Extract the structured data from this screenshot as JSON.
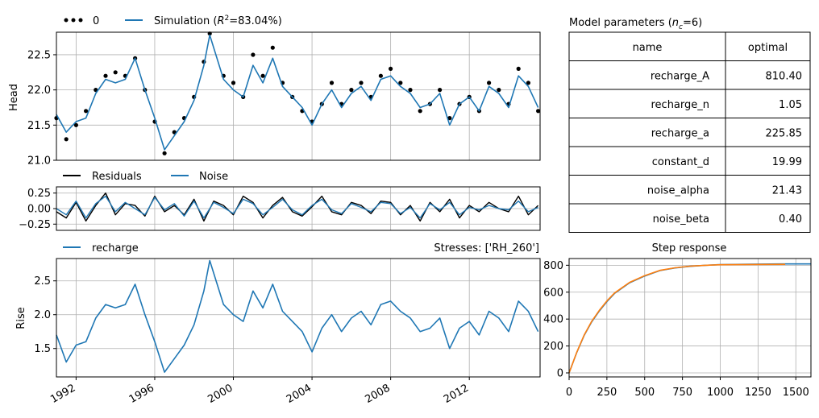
{
  "chart_data": [
    {
      "id": "head",
      "type": "line",
      "ylabel": "Head",
      "ylim": [
        21.0,
        22.82
      ],
      "yticks": [
        "21.0",
        "21.5",
        "22.0",
        "22.5"
      ],
      "x_range": [
        "1991-01",
        "2015-06"
      ],
      "legend": {
        "placement": "top-left, above axes",
        "items": [
          {
            "label": "0",
            "style": "dots",
            "color": "#000000"
          },
          {
            "label": "Simulation (R²=83.04%)",
            "style": "line",
            "color": "#1f77b4"
          }
        ]
      },
      "series": [
        {
          "name": "0",
          "kind": "observed points",
          "x": [
            1991.0,
            1991.5,
            1992.0,
            1992.5,
            1993.0,
            1993.5,
            1994.0,
            1994.5,
            1995.0,
            1995.5,
            1996.0,
            1996.5,
            1997.0,
            1997.5,
            1998.0,
            1998.5,
            1998.8,
            1999.5,
            2000.0,
            2000.5,
            2001.0,
            2001.5,
            2002.0,
            2002.5,
            2003.0,
            2003.5,
            2004.0,
            2004.5,
            2005.0,
            2005.5,
            2006.0,
            2006.5,
            2007.0,
            2007.5,
            2008.0,
            2008.5,
            2009.0,
            2009.5,
            2010.0,
            2010.5,
            2011.0,
            2011.5,
            2012.0,
            2012.5,
            2013.0,
            2013.5,
            2014.0,
            2014.5,
            2015.0,
            2015.5
          ],
          "y": [
            21.6,
            21.3,
            21.5,
            21.7,
            22.0,
            22.2,
            22.25,
            22.2,
            22.45,
            22.0,
            21.55,
            21.1,
            21.4,
            21.6,
            21.9,
            22.4,
            22.8,
            22.2,
            22.1,
            21.9,
            22.5,
            22.2,
            22.6,
            22.1,
            21.9,
            21.7,
            21.55,
            21.8,
            22.1,
            21.8,
            22.0,
            22.1,
            21.9,
            22.2,
            22.3,
            22.1,
            22.0,
            21.7,
            21.8,
            22.0,
            21.6,
            21.8,
            21.9,
            21.7,
            22.1,
            22.0,
            21.8,
            22.3,
            22.1,
            21.7
          ]
        },
        {
          "name": "Simulation (R²=83.04%)",
          "kind": "line",
          "x": [
            1991.0,
            1991.5,
            1992.0,
            1992.5,
            1993.0,
            1993.5,
            1994.0,
            1994.5,
            1995.0,
            1995.5,
            1996.0,
            1996.5,
            1997.0,
            1997.5,
            1998.0,
            1998.5,
            1998.8,
            1999.5,
            2000.0,
            2000.5,
            2001.0,
            2001.5,
            2002.0,
            2002.5,
            2003.0,
            2003.5,
            2004.0,
            2004.5,
            2005.0,
            2005.5,
            2006.0,
            2006.5,
            2007.0,
            2007.5,
            2008.0,
            2008.5,
            2009.0,
            2009.5,
            2010.0,
            2010.5,
            2011.0,
            2011.5,
            2012.0,
            2012.5,
            2013.0,
            2013.5,
            2014.0,
            2014.5,
            2015.0,
            2015.5
          ],
          "y": [
            21.65,
            21.4,
            21.55,
            21.6,
            21.95,
            22.15,
            22.1,
            22.15,
            22.45,
            22.0,
            21.6,
            21.15,
            21.35,
            21.55,
            21.85,
            22.35,
            22.78,
            22.15,
            22.0,
            21.9,
            22.35,
            22.1,
            22.45,
            22.05,
            21.9,
            21.75,
            21.5,
            21.8,
            22.0,
            21.75,
            21.95,
            22.05,
            21.85,
            22.15,
            22.2,
            22.05,
            21.95,
            21.75,
            21.8,
            21.95,
            21.5,
            21.8,
            21.9,
            21.7,
            22.05,
            21.95,
            21.75,
            22.2,
            22.05,
            21.75
          ]
        }
      ]
    },
    {
      "id": "residuals",
      "type": "line",
      "ylim": [
        -0.35,
        0.35
      ],
      "yticks": [
        "−0.25",
        "0.00",
        "0.25"
      ],
      "legend": {
        "placement": "top-left, above axes",
        "items": [
          {
            "label": "Residuals",
            "style": "line",
            "color": "#000000"
          },
          {
            "label": "Noise",
            "style": "line",
            "color": "#1f77b4"
          }
        ]
      },
      "series": [
        {
          "name": "Residuals",
          "x": [
            1991.0,
            1991.5,
            1992.0,
            1992.5,
            1993.0,
            1993.5,
            1994.0,
            1994.5,
            1995.0,
            1995.5,
            1996.0,
            1996.5,
            1997.0,
            1997.5,
            1998.0,
            1998.5,
            1999.0,
            1999.5,
            2000.0,
            2000.5,
            2001.0,
            2001.5,
            2002.0,
            2002.5,
            2003.0,
            2003.5,
            2004.0,
            2004.5,
            2005.0,
            2005.5,
            2006.0,
            2006.5,
            2007.0,
            2007.5,
            2008.0,
            2008.5,
            2009.0,
            2009.5,
            2010.0,
            2010.5,
            2011.0,
            2011.5,
            2012.0,
            2012.5,
            2013.0,
            2013.5,
            2014.0,
            2014.5,
            2015.0,
            2015.5
          ],
          "y": [
            -0.05,
            -0.15,
            0.1,
            -0.2,
            0.05,
            0.25,
            -0.1,
            0.08,
            0.05,
            -0.12,
            0.2,
            -0.05,
            0.05,
            -0.1,
            0.15,
            -0.2,
            0.12,
            0.05,
            -0.1,
            0.2,
            0.1,
            -0.15,
            0.05,
            0.18,
            -0.05,
            -0.12,
            0.03,
            0.2,
            -0.05,
            -0.1,
            0.1,
            0.05,
            -0.08,
            0.12,
            0.1,
            -0.1,
            0.05,
            -0.2,
            0.1,
            -0.05,
            0.15,
            -0.15,
            0.05,
            -0.05,
            0.1,
            0.0,
            -0.05,
            0.2,
            -0.1,
            0.05
          ]
        },
        {
          "name": "Noise",
          "x": [
            1991.0,
            1991.5,
            1992.0,
            1992.5,
            1993.0,
            1993.5,
            1994.0,
            1994.5,
            1995.0,
            1995.5,
            1996.0,
            1996.5,
            1997.0,
            1997.5,
            1998.0,
            1998.5,
            1999.0,
            1999.5,
            2000.0,
            2000.5,
            2001.0,
            2001.5,
            2002.0,
            2002.5,
            2003.0,
            2003.5,
            2004.0,
            2004.5,
            2005.0,
            2005.5,
            2006.0,
            2006.5,
            2007.0,
            2007.5,
            2008.0,
            2008.5,
            2009.0,
            2009.5,
            2010.0,
            2010.5,
            2011.0,
            2011.5,
            2012.0,
            2012.5,
            2013.0,
            2013.5,
            2014.0,
            2014.5,
            2015.0,
            2015.5
          ],
          "y": [
            0.0,
            -0.1,
            0.12,
            -0.15,
            0.08,
            0.2,
            -0.05,
            0.1,
            0.0,
            -0.1,
            0.18,
            -0.02,
            0.08,
            -0.12,
            0.12,
            -0.15,
            0.1,
            0.02,
            -0.08,
            0.15,
            0.08,
            -0.1,
            0.02,
            0.15,
            -0.02,
            -0.1,
            0.05,
            0.15,
            -0.02,
            -0.08,
            0.08,
            0.02,
            -0.05,
            0.1,
            0.08,
            -0.08,
            0.02,
            -0.15,
            0.08,
            -0.02,
            0.1,
            -0.1,
            0.02,
            -0.02,
            0.05,
            0.0,
            -0.02,
            0.12,
            -0.05,
            0.02
          ]
        }
      ]
    },
    {
      "id": "recharge",
      "type": "line",
      "ylabel": "Rise",
      "title_right": "Stresses: ['RH_260']",
      "ylim": [
        1.08,
        2.83
      ],
      "yticks": [
        "1.5",
        "2.0",
        "2.5"
      ],
      "xticks": [
        "1992",
        "1996",
        "2000",
        "2004",
        "2008",
        "2012"
      ],
      "legend": {
        "placement": "top-left, above axes",
        "items": [
          {
            "label": "recharge",
            "style": "line",
            "color": "#1f77b4"
          }
        ]
      },
      "series": [
        {
          "name": "recharge",
          "x": [
            1991.0,
            1991.5,
            1992.0,
            1992.5,
            1993.0,
            1993.5,
            1994.0,
            1994.5,
            1995.0,
            1995.5,
            1996.0,
            1996.5,
            1997.0,
            1997.5,
            1998.0,
            1998.5,
            1998.8,
            1999.5,
            2000.0,
            2000.5,
            2001.0,
            2001.5,
            2002.0,
            2002.5,
            2003.0,
            2003.5,
            2004.0,
            2004.5,
            2005.0,
            2005.5,
            2006.0,
            2006.5,
            2007.0,
            2007.5,
            2008.0,
            2008.5,
            2009.0,
            2009.5,
            2010.0,
            2010.5,
            2011.0,
            2011.5,
            2012.0,
            2012.5,
            2013.0,
            2013.5,
            2014.0,
            2014.5,
            2015.0,
            2015.5
          ],
          "y": [
            1.7,
            1.3,
            1.55,
            1.6,
            1.95,
            2.15,
            2.1,
            2.15,
            2.45,
            2.0,
            1.6,
            1.15,
            1.35,
            1.55,
            1.85,
            2.35,
            2.8,
            2.15,
            2.0,
            1.9,
            2.35,
            2.1,
            2.45,
            2.05,
            1.9,
            1.75,
            1.45,
            1.8,
            2.0,
            1.75,
            1.95,
            2.05,
            1.85,
            2.15,
            2.2,
            2.05,
            1.95,
            1.75,
            1.8,
            1.95,
            1.5,
            1.8,
            1.9,
            1.7,
            2.05,
            1.95,
            1.75,
            2.2,
            2.05,
            1.75
          ]
        }
      ]
    },
    {
      "id": "step-response",
      "type": "line",
      "title": "Step response",
      "xlim": [
        0,
        1600
      ],
      "ylim": [
        -30,
        850
      ],
      "xticks": [
        "0",
        "250",
        "500",
        "750",
        "1000",
        "1250",
        "1500"
      ],
      "yticks": [
        "0",
        "200",
        "400",
        "600",
        "800"
      ],
      "series": [
        {
          "name": "",
          "color": "#1f77b4",
          "x": [
            0,
            50,
            100,
            150,
            200,
            250,
            300,
            400,
            500,
            600,
            700,
            800,
            900,
            1000,
            1200,
            1400,
            1600
          ],
          "y": [
            0,
            150,
            280,
            380,
            460,
            530,
            590,
            670,
            720,
            760,
            780,
            792,
            800,
            805,
            808,
            810,
            810
          ]
        },
        {
          "name": "",
          "color": "#ff7f0e",
          "x": [
            0,
            50,
            100,
            150,
            200,
            250,
            300,
            400,
            500,
            600,
            700,
            800,
            900,
            1000,
            1200,
            1430
          ],
          "y": [
            0,
            152,
            283,
            384,
            465,
            535,
            594,
            673,
            723,
            762,
            781,
            793,
            800,
            804,
            806,
            807
          ]
        }
      ]
    }
  ],
  "param_table": {
    "title": "Model parameters (nc=6)",
    "headers": [
      "name",
      "optimal"
    ],
    "rows": [
      [
        "recharge_A",
        "810.40"
      ],
      [
        "recharge_n",
        "1.05"
      ],
      [
        "recharge_a",
        "225.85"
      ],
      [
        "constant_d",
        "19.99"
      ],
      [
        "noise_alpha",
        "21.43"
      ],
      [
        "noise_beta",
        "0.40"
      ]
    ]
  }
}
